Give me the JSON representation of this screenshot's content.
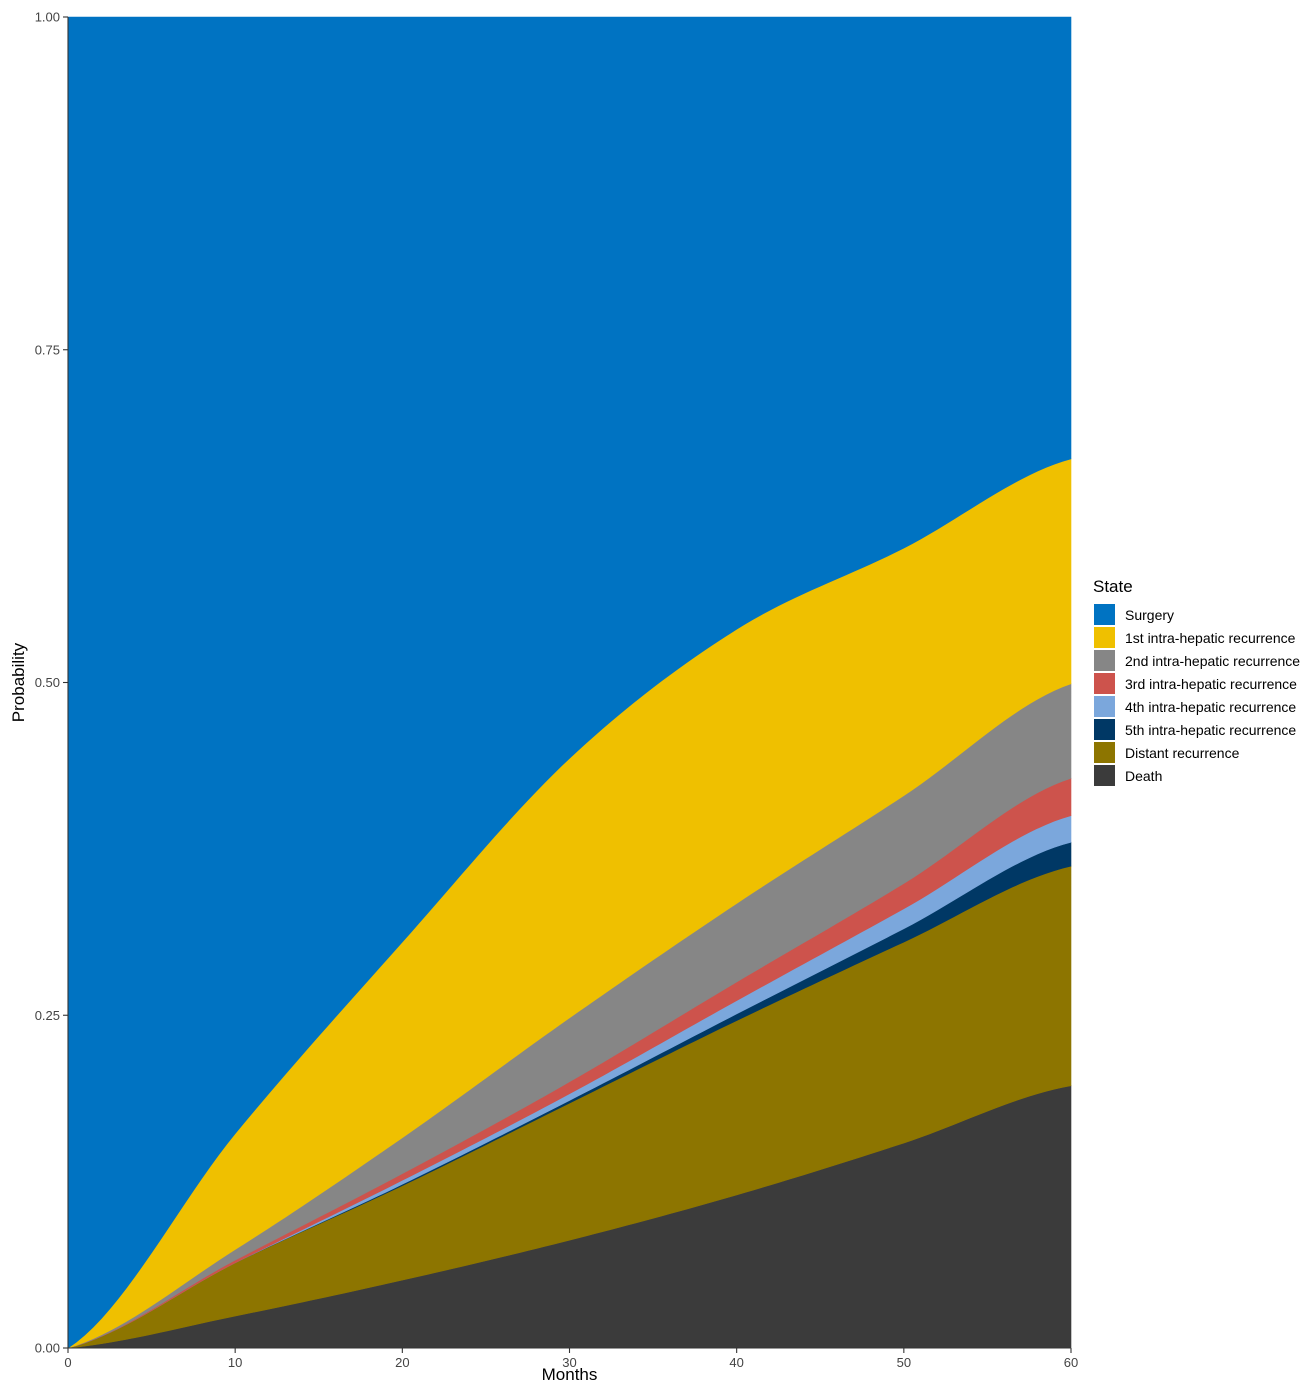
{
  "chart_data": {
    "type": "area",
    "stacked": true,
    "xlabel": "Months",
    "ylabel": "Probability",
    "xlim": [
      0,
      60
    ],
    "ylim": [
      0,
      1
    ],
    "x_ticks": [
      0,
      10,
      20,
      30,
      40,
      50,
      60
    ],
    "y_ticks": [
      0,
      0.25,
      0.5,
      0.75,
      1
    ],
    "x_tick_labels": [
      "0",
      "10",
      "20",
      "30",
      "40",
      "50",
      "60"
    ],
    "y_tick_labels": [
      "0.00",
      "0.25",
      "0.50",
      "0.75",
      "1.00"
    ],
    "grid": false,
    "legend": {
      "title": "State",
      "position": "right"
    },
    "x": [
      0,
      10,
      20,
      30,
      40,
      50,
      60
    ],
    "series": [
      {
        "name": "Death",
        "color": "#3b3b3b",
        "values": [
          0,
          0.024,
          0.051,
          0.081,
          0.115,
          0.154,
          0.197
        ]
      },
      {
        "name": "Distant recurrence",
        "color": "#8d7500",
        "values": [
          0,
          0.04,
          0.071,
          0.103,
          0.131,
          0.151,
          0.165
        ]
      },
      {
        "name": "5th intra-hepatic recurrence",
        "color": "#003865",
        "values": [
          0,
          0.0,
          0.001,
          0.002,
          0.005,
          0.01,
          0.018
        ]
      },
      {
        "name": "4th intra-hepatic recurrence",
        "color": "#7ba7dc",
        "values": [
          0,
          0.0,
          0.003,
          0.005,
          0.01,
          0.015,
          0.02
        ]
      },
      {
        "name": "3rd intra-hepatic recurrence",
        "color": "#cd534c",
        "values": [
          0,
          0.002,
          0.005,
          0.009,
          0.014,
          0.019,
          0.028
        ]
      },
      {
        "name": "2nd intra-hepatic recurrence",
        "color": "#868686",
        "values": [
          0,
          0.008,
          0.027,
          0.048,
          0.059,
          0.066,
          0.071
        ]
      },
      {
        "name": "1st intra-hepatic recurrence",
        "color": "#efc000",
        "values": [
          0,
          0.087,
          0.147,
          0.195,
          0.206,
          0.186,
          0.169
        ]
      },
      {
        "name": "Surgery",
        "color": "#0073c2",
        "values": [
          1,
          0.839,
          0.695,
          0.557,
          0.46,
          0.399,
          0.332
        ]
      }
    ],
    "legend_order": [
      "Surgery",
      "1st intra-hepatic recurrence",
      "2nd intra-hepatic recurrence",
      "3rd intra-hepatic recurrence",
      "4th intra-hepatic recurrence",
      "5th intra-hepatic recurrence",
      "Distant recurrence",
      "Death"
    ]
  }
}
